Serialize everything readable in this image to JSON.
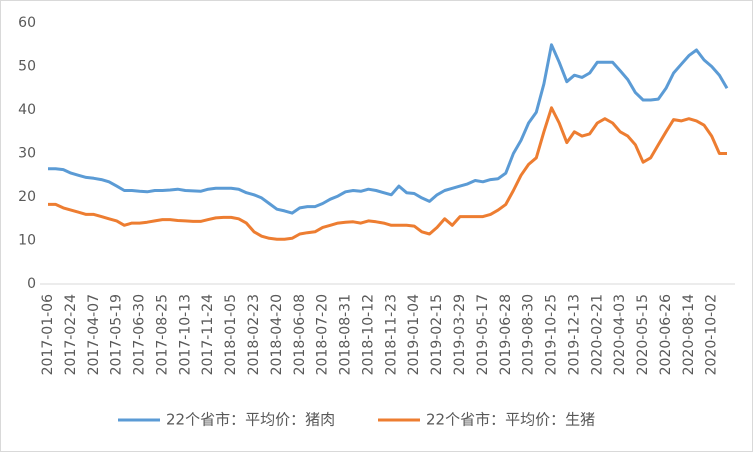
{
  "chart_data": {
    "type": "line",
    "categories": [
      "2017-01-06",
      null,
      null,
      "2017-02-24",
      null,
      null,
      "2017-04-07",
      null,
      null,
      "2017-05-19",
      null,
      null,
      "2017-06-30",
      null,
      null,
      "2017-08-25",
      null,
      null,
      "2017-10-13",
      null,
      null,
      "2017-11-24",
      null,
      null,
      "2018-01-05",
      null,
      null,
      "2018-02-23",
      null,
      null,
      "2018-04-20",
      null,
      null,
      "2018-06-08",
      null,
      null,
      "2018-07-20",
      null,
      null,
      "2018-08-31",
      null,
      null,
      "2018-10-12",
      null,
      null,
      "2018-11-23",
      null,
      null,
      "2019-01-04",
      null,
      null,
      "2019-02-15",
      null,
      null,
      "2019-03-29",
      null,
      null,
      "2019-05-17",
      null,
      null,
      "2019-06-28",
      null,
      null,
      "2019-08-30",
      null,
      null,
      "2019-10-25",
      null,
      null,
      "2019-12-13",
      null,
      null,
      "2020-02-21",
      null,
      null,
      "2020-04-03",
      null,
      null,
      "2020-05-15",
      null,
      null,
      "2020-06-26",
      null,
      null,
      "2020-08-14",
      null,
      null,
      "2020-10-02",
      null,
      null
    ],
    "series": [
      {
        "name": "22个省市：平均价：猪肉",
        "color": "#5b9bd5",
        "values": [
          26.5,
          26.5,
          26.3,
          25.5,
          25,
          24.5,
          24.3,
          24,
          23.5,
          22.5,
          21.5,
          21.5,
          21.3,
          21.2,
          21.5,
          21.5,
          21.6,
          21.8,
          21.5,
          21.4,
          21.3,
          21.8,
          22,
          22,
          22,
          21.8,
          21,
          20.5,
          19.8,
          18.5,
          17.2,
          16.8,
          16.3,
          17.5,
          17.8,
          17.8,
          18.5,
          19.5,
          20.2,
          21.2,
          21.5,
          21.3,
          21.8,
          21.5,
          21,
          20.5,
          22.5,
          21,
          20.8,
          19.8,
          19,
          20.5,
          21.5,
          22,
          22.5,
          23,
          23.8,
          23.5,
          24,
          24.2,
          25.5,
          30,
          33,
          37,
          39.5,
          46,
          55,
          51,
          46.5,
          48,
          47.5,
          48.5,
          51,
          51,
          51,
          49,
          47,
          44,
          42.3,
          42.3,
          42.5,
          45,
          48.5,
          50.5,
          52.5,
          53.8,
          51.5,
          50,
          48,
          45
        ]
      },
      {
        "name": "22个省市：平均价：生猪",
        "color": "#ed7d31",
        "values": [
          18.3,
          18.3,
          17.5,
          17,
          16.5,
          16,
          16,
          15.5,
          15,
          14.5,
          13.5,
          14,
          14,
          14.2,
          14.5,
          14.8,
          14.8,
          14.6,
          14.5,
          14.4,
          14.4,
          14.8,
          15.2,
          15.3,
          15.3,
          15,
          14,
          12,
          11,
          10.5,
          10.3,
          10.3,
          10.5,
          11.5,
          11.8,
          12,
          13,
          13.5,
          14,
          14.2,
          14.3,
          14,
          14.5,
          14.3,
          14,
          13.5,
          13.5,
          13.5,
          13.3,
          12,
          11.5,
          13,
          15,
          13.5,
          15.5,
          15.5,
          15.5,
          15.5,
          16,
          17,
          18.3,
          21.5,
          25,
          27.5,
          29,
          35,
          40.5,
          37,
          32.5,
          35,
          34,
          34.5,
          37,
          38,
          37,
          35,
          34,
          32,
          28,
          29,
          32,
          35,
          37.8,
          37.5,
          38,
          37.5,
          36.5,
          34,
          30,
          30
        ]
      }
    ],
    "ylim": [
      0,
      60
    ],
    "yticks": [
      0,
      10,
      20,
      30,
      40,
      50,
      60
    ],
    "grid": false,
    "legend": "bottom"
  }
}
